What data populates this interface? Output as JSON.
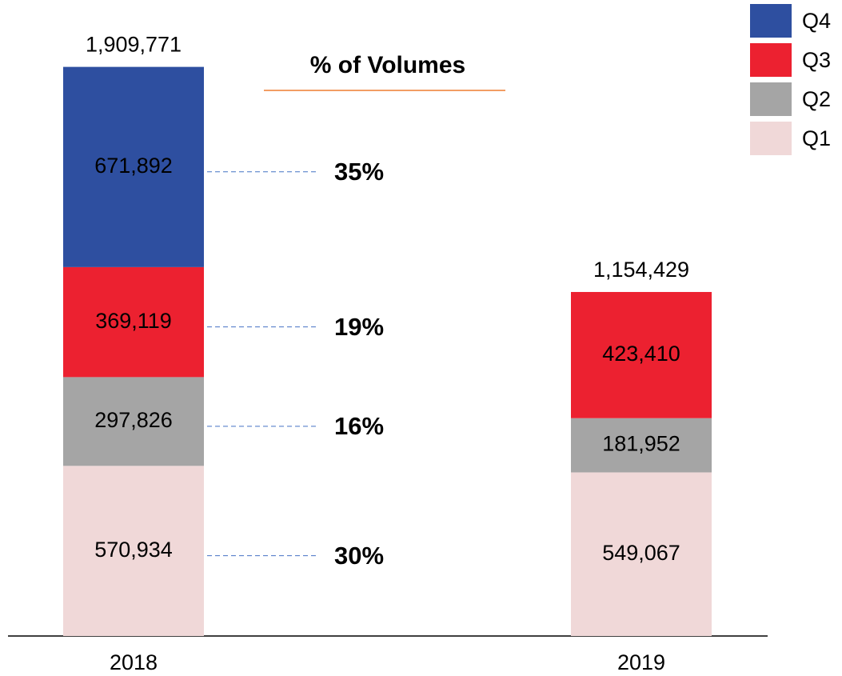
{
  "chart_data": {
    "type": "stacked_bar",
    "title": "% of Volumes",
    "categories": [
      "2018",
      "2019"
    ],
    "series": [
      {
        "name": "Q1",
        "color": "#f0d8d8",
        "label_color": "#000000",
        "values": [
          570934,
          549067
        ],
        "value_labels": [
          "570,934",
          "549,067"
        ],
        "share": 30,
        "share_label": "30%"
      },
      {
        "name": "Q2",
        "color": "#a5a5a5",
        "label_color": "#000000",
        "values": [
          297826,
          181952
        ],
        "value_labels": [
          "297,826",
          "181,952"
        ],
        "share": 16,
        "share_label": "16%"
      },
      {
        "name": "Q3",
        "color": "#ec2130",
        "label_color": "#ffffff",
        "values": [
          369119,
          423410
        ],
        "value_labels": [
          "369,119",
          "423,410"
        ],
        "share": 19,
        "share_label": "19%"
      },
      {
        "name": "Q4",
        "color": "#2e4fa0",
        "label_color": "#ffffff",
        "values": [
          671892,
          null
        ],
        "value_labels": [
          "671,892",
          null
        ],
        "share": 35,
        "share_label": "35%"
      }
    ],
    "totals": {
      "values": [
        1909771,
        1154429
      ],
      "value_labels": [
        "1,909,771",
        "1,154,429"
      ]
    },
    "ylim": [
      0,
      2000000
    ],
    "legend": "top-right"
  }
}
